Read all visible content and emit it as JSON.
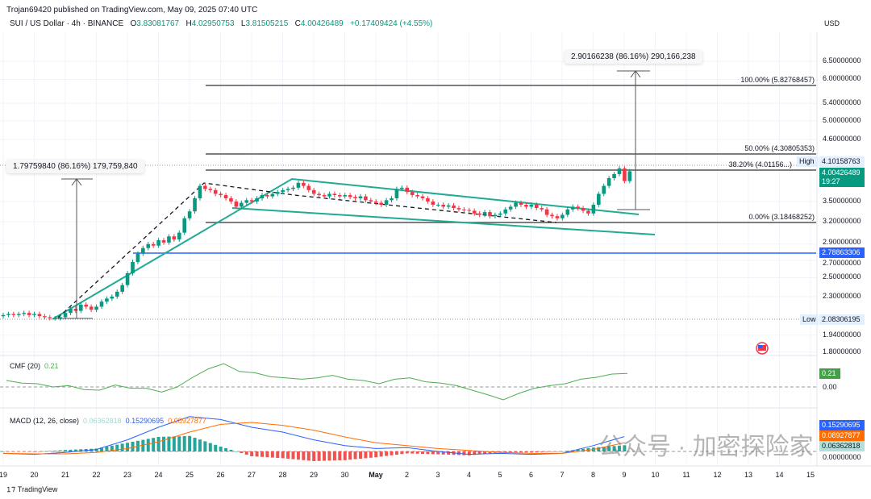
{
  "header": {
    "published": "Trojan69420 published on TradingView.com, May 09, 2025 07:40 UTC",
    "symbol": "SUI / US Dollar · 4h · BINANCE",
    "o_label": "O",
    "o": "3.83081767",
    "h_label": "H",
    "h": "4.02950753",
    "l_label": "L",
    "l": "3.81505215",
    "c_label": "C",
    "c": "4.00426489",
    "change": "+0.17409424 (+4.55%)",
    "currency": "USD"
  },
  "price_axis": {
    "scale": "log",
    "ticks": [
      "6.50000000",
      "6.00000000",
      "5.40000000",
      "5.00000000",
      "4.60000000",
      "3.50000000",
      "3.20000000",
      "2.90000000",
      "2.70000000",
      "2.50000000",
      "2.30000000",
      "1.94000000",
      "1.80000000"
    ],
    "high_label": "High",
    "high": "4.10158763",
    "current": "4.00426489",
    "countdown": "19:27",
    "hline": "2.78863306",
    "low_label": "Low",
    "low": "2.08306195"
  },
  "fib": {
    "f100": "100.00% (5.82768457)",
    "f50": "50.00% (4.30805353)",
    "f382": "38.20% (4.01156...)",
    "f0": "0.00% (3.18468252)"
  },
  "measures": {
    "left": "1.79759840 (86.16%) 179,759,840",
    "right": "2.90166238 (86.16%) 290,166,238"
  },
  "x_axis": [
    "19",
    "20",
    "21",
    "22",
    "23",
    "24",
    "25",
    "26",
    "27",
    "28",
    "29",
    "30",
    "May",
    "2",
    "3",
    "4",
    "5",
    "6",
    "7",
    "8",
    "9",
    "10",
    "11",
    "12",
    "13",
    "14",
    "15"
  ],
  "colors": {
    "up": "#089981",
    "down": "#f23645",
    "channel": "#22ab94",
    "hline": "#2962ff",
    "cmf": "#4caf50",
    "macd": "#2962ff",
    "signal": "#ff6d00",
    "hist_up": "#26a69a"
  },
  "candles_close": [
    2.12,
    2.13,
    2.12,
    2.13,
    2.14,
    2.12,
    2.13,
    2.11,
    2.1,
    2.09,
    2.09,
    2.1,
    2.14,
    2.18,
    2.16,
    2.22,
    2.2,
    2.17,
    2.2,
    2.25,
    2.28,
    2.3,
    2.35,
    2.42,
    2.55,
    2.68,
    2.78,
    2.85,
    2.9,
    2.88,
    2.95,
    2.92,
    3.0,
    2.96,
    3.05,
    3.25,
    3.35,
    3.55,
    3.75,
    3.7,
    3.68,
    3.62,
    3.6,
    3.55,
    3.5,
    3.42,
    3.48,
    3.52,
    3.5,
    3.55,
    3.6,
    3.58,
    3.62,
    3.65,
    3.68,
    3.7,
    3.72,
    3.8,
    3.75,
    3.68,
    3.62,
    3.6,
    3.58,
    3.62,
    3.6,
    3.58,
    3.6,
    3.57,
    3.55,
    3.58,
    3.52,
    3.5,
    3.48,
    3.45,
    3.52,
    3.55,
    3.7,
    3.72,
    3.65,
    3.6,
    3.58,
    3.55,
    3.5,
    3.45,
    3.45,
    3.42,
    3.44,
    3.4,
    3.38,
    3.37,
    3.36,
    3.32,
    3.3,
    3.34,
    3.28,
    3.3,
    3.32,
    3.38,
    3.42,
    3.48,
    3.45,
    3.42,
    3.45,
    3.4,
    3.38,
    3.3,
    3.28,
    3.25,
    3.3,
    3.38,
    3.42,
    3.4,
    3.36,
    3.32,
    3.45,
    3.62,
    3.75,
    3.88,
    3.95,
    4.05,
    3.83,
    4.0
  ],
  "cmf": {
    "label": "CMF (20)",
    "value": "0.21",
    "zero": "0.00",
    "values": [
      0.1,
      0.06,
      0.05,
      0.0,
      0.02,
      -0.04,
      -0.05,
      0.03,
      -0.02,
      -0.02,
      -0.08,
      0.0,
      0.15,
      0.28,
      0.36,
      0.24,
      0.22,
      0.16,
      0.14,
      0.12,
      0.14,
      0.18,
      0.12,
      0.1,
      0.05,
      0.12,
      0.14,
      0.08,
      0.06,
      0.02,
      -0.05,
      -0.12,
      -0.2,
      -0.1,
      -0.02,
      0.02,
      0.05,
      0.12,
      0.15,
      0.2,
      0.21
    ]
  },
  "macd": {
    "label": "MACD (12, 26, close)",
    "hist": "0.06362818",
    "macd": "0.15290695",
    "signal": "0.08927877",
    "zero": "0.00000000",
    "macd_values": [
      -0.02,
      -0.03,
      -0.01,
      0.02,
      0.12,
      0.25,
      0.36,
      0.33,
      0.25,
      0.2,
      0.12,
      0.06,
      0.03,
      0.04,
      0.0,
      -0.03,
      -0.02,
      -0.03,
      -0.02,
      0.06,
      0.153
    ],
    "signal_values": [
      -0.02,
      -0.025,
      -0.025,
      -0.01,
      0.03,
      0.1,
      0.2,
      0.28,
      0.3,
      0.27,
      0.22,
      0.15,
      0.09,
      0.06,
      0.03,
      0.01,
      -0.01,
      -0.02,
      -0.02,
      0.02,
      0.089
    ]
  },
  "footer": {
    "brand": "TradingView",
    "watermark": "公众号 · 加密探险家"
  }
}
